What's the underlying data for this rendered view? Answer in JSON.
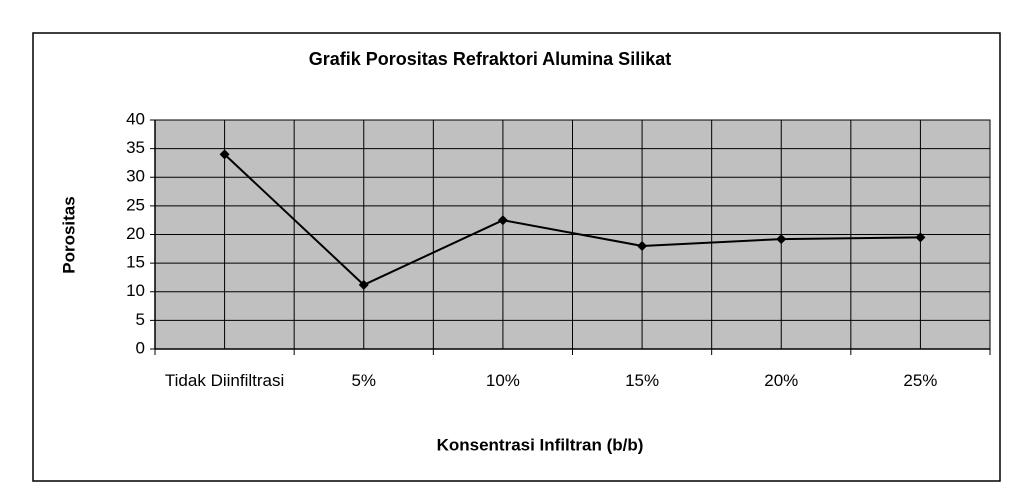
{
  "chart_data": {
    "type": "line",
    "title": "Grafik Porositas Refraktori Alumina Silikat",
    "x_label": "Konsentrasi Infiltran (b/b)",
    "y_label": "Porositas",
    "categories": [
      "Tidak Diinfiltrasi",
      "5%",
      "10%",
      "15%",
      "20%",
      "25%"
    ],
    "values": [
      34,
      11.2,
      22.5,
      18,
      19.2,
      19.5
    ],
    "color": "#000000",
    "ylim": [
      0,
      40
    ],
    "yticks": [
      0,
      5,
      10,
      15,
      20,
      25,
      30,
      35,
      40
    ],
    "grid": true,
    "plot_background": "#c0c0c0"
  }
}
